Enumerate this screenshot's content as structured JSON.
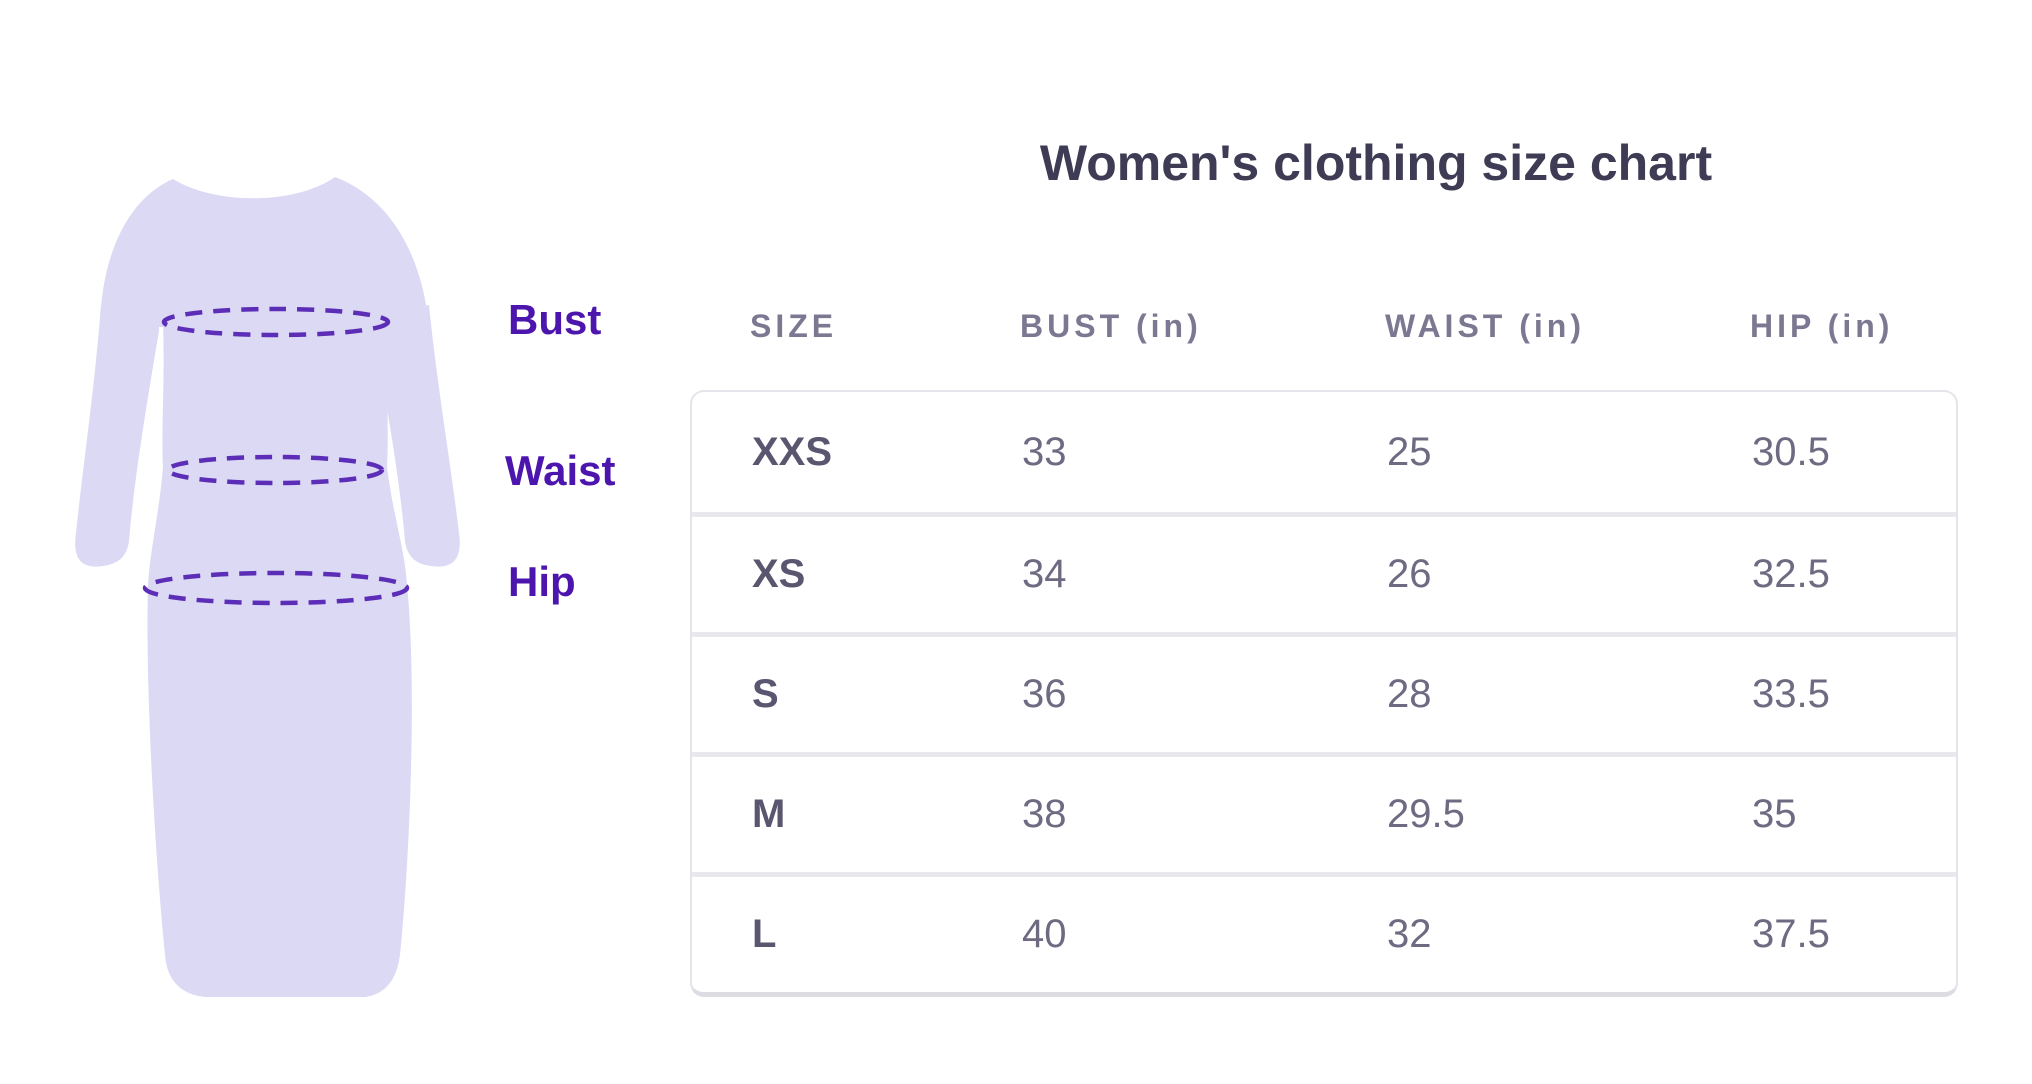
{
  "title": "Women's clothing size chart",
  "figure": {
    "kind": "dress-silhouette",
    "labels": [
      {
        "text": "Bust"
      },
      {
        "text": "Waist"
      },
      {
        "text": "Hip"
      }
    ]
  },
  "table": {
    "columns": [
      "SIZE",
      "BUST (in)",
      "WAIST (in)",
      "HIP (in)"
    ],
    "rows": [
      [
        "XXS",
        "33",
        "25",
        "30.5"
      ],
      [
        "XS",
        "34",
        "26",
        "32.5"
      ],
      [
        "S",
        "36",
        "28",
        "33.5"
      ],
      [
        "M",
        "38",
        "29.5",
        "35"
      ],
      [
        "L",
        "40",
        "32",
        "37.5"
      ]
    ]
  },
  "colors": {
    "accent_purple": "#4c15ad",
    "measure_line_purple": "#5c2db6",
    "dress_fill": "#dcd9f5",
    "title_text": "#3e3b54",
    "header_text": "#7c7892",
    "cell_text": "#6f6a82",
    "size_text": "#5b566f",
    "table_border": "#e5e4ea",
    "row_divider": "#e9e8ee"
  },
  "chart_data": {
    "type": "table",
    "title": "Women's clothing size chart",
    "columns": [
      "SIZE",
      "BUST (in)",
      "WAIST (in)",
      "HIP (in)"
    ],
    "categories": [
      "XXS",
      "XS",
      "S",
      "M",
      "L"
    ],
    "series": [
      {
        "name": "BUST (in)",
        "values": [
          33,
          34,
          36,
          38,
          40
        ]
      },
      {
        "name": "WAIST (in)",
        "values": [
          25,
          26,
          28,
          29.5,
          32
        ]
      },
      {
        "name": "HIP (in)",
        "values": [
          30.5,
          32.5,
          33.5,
          35,
          37.5
        ]
      }
    ],
    "annotations": [
      "Bust",
      "Waist",
      "Hip"
    ],
    "units": "inches"
  }
}
